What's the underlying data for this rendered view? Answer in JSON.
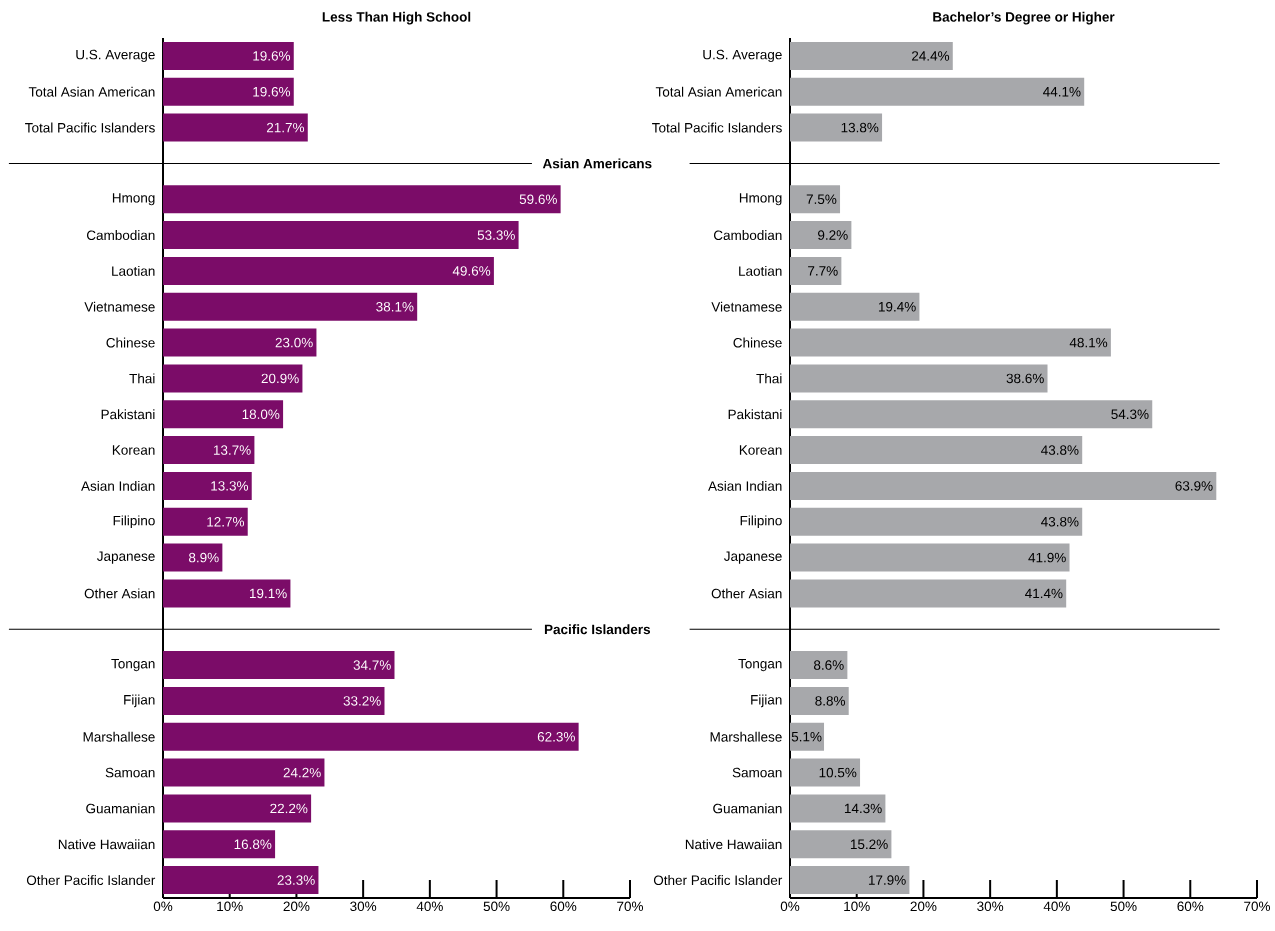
{
  "chart_data": [
    {
      "type": "bar",
      "orientation": "horizontal",
      "title": "Less Than High School",
      "color": "#7b0c68",
      "categories": [
        "U.S. Average",
        "Total Asian American",
        "Total Pacific Islanders",
        null,
        "Hmong",
        "Cambodian",
        "Laotian",
        "Vietnamese",
        "Chinese",
        "Thai",
        "Pakistani",
        "Korean",
        "Asian Indian",
        "Filipino",
        "Japanese",
        "Other Asian",
        null,
        "Tongan",
        "Fijian",
        "Marshallese",
        "Samoan",
        "Guamanian",
        "Native Hawaiian",
        "Other Pacific Islander"
      ],
      "values": [
        19.6,
        19.6,
        21.7,
        null,
        59.6,
        53.3,
        49.6,
        38.1,
        23.0,
        20.9,
        18.0,
        13.7,
        13.3,
        12.7,
        8.9,
        19.1,
        null,
        34.7,
        33.2,
        62.3,
        24.2,
        22.2,
        16.8,
        23.3
      ],
      "value_labels": [
        "19.6%",
        "19.6%",
        "21.7%",
        null,
        "59.6%",
        "53.3%",
        "49.6%",
        "38.1%",
        "23.0%",
        "20.9%",
        "18.0%",
        "13.7%",
        "13.3%",
        "12.7%",
        "8.9%",
        "19.1%",
        null,
        "34.7%",
        "33.2%",
        "62.3%",
        "24.2%",
        "22.2%",
        "16.8%",
        "23.3%"
      ],
      "xlim": [
        0,
        70
      ],
      "xticks": [
        {
          "value": 0,
          "label": "0%"
        },
        {
          "value": 10,
          "label": "10%"
        },
        {
          "value": 20,
          "label": "20%"
        },
        {
          "value": 30,
          "label": "30%"
        },
        {
          "value": 40,
          "label": "40%"
        },
        {
          "value": 50,
          "label": "50%"
        },
        {
          "value": 60,
          "label": "60%"
        },
        {
          "value": 70,
          "label": "70%"
        }
      ],
      "annotations": [
        "Asian Americans",
        "Pacific Islanders"
      ]
    },
    {
      "type": "bar",
      "orientation": "horizontal",
      "title": "Bachelor’s Degree or Higher",
      "color": "#a7a8ab",
      "categories": [
        "U.S. Average",
        "Total Asian American",
        "Total Pacific Islanders",
        null,
        "Hmong",
        "Cambodian",
        "Laotian",
        "Vietnamese",
        "Chinese",
        "Thai",
        "Pakistani",
        "Korean",
        "Asian Indian",
        "Filipino",
        "Japanese",
        "Other Asian",
        null,
        "Tongan",
        "Fijian",
        "Marshallese",
        "Samoan",
        "Guamanian",
        "Native Hawaiian",
        "Other Pacific Islander"
      ],
      "values": [
        24.4,
        44.1,
        13.8,
        null,
        7.5,
        9.2,
        7.7,
        19.4,
        48.1,
        38.6,
        54.3,
        43.8,
        63.9,
        43.8,
        41.9,
        41.4,
        null,
        8.6,
        8.8,
        5.1,
        10.5,
        14.3,
        15.2,
        17.9
      ],
      "value_labels": [
        "24.4%",
        "44.1%",
        "13.8%",
        null,
        "7.5%",
        "9.2%",
        "7.7%",
        "19.4%",
        "48.1%",
        "38.6%",
        "54.3%",
        "43.8%",
        "63.9%",
        "43.8%",
        "41.9%",
        "41.4%",
        null,
        "8.6%",
        "8.8%",
        "5.1%",
        "10.5%",
        "14.3%",
        "15.2%",
        "17.9%"
      ],
      "xlim": [
        0,
        70
      ],
      "xticks": [
        {
          "value": 0,
          "label": "0%"
        },
        {
          "value": 10,
          "label": "10%"
        },
        {
          "value": 20,
          "label": "20%"
        },
        {
          "value": 30,
          "label": "30%"
        },
        {
          "value": 40,
          "label": "40%"
        },
        {
          "value": 50,
          "label": "50%"
        },
        {
          "value": 60,
          "label": "60%"
        },
        {
          "value": 70,
          "label": "70%"
        }
      ]
    }
  ]
}
